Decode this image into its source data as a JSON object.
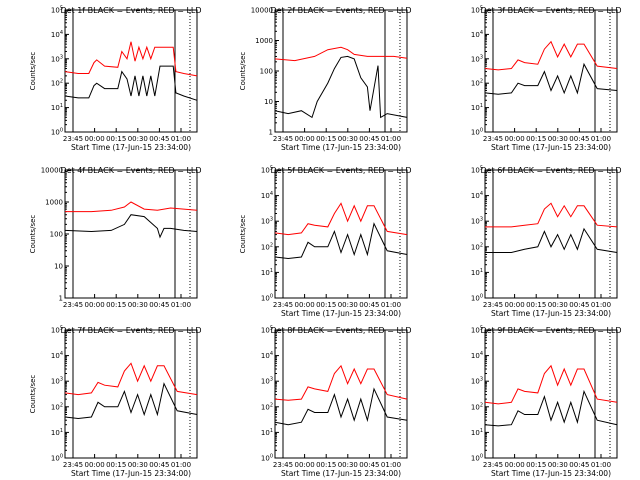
{
  "figure": {
    "colors": {
      "events": "#000000",
      "lld": "#ff0000",
      "axes": "#000000",
      "background": "#ffffff"
    },
    "marker_labels": {
      "left": "",
      "right": ""
    }
  },
  "chart_data": [
    {
      "type": "line",
      "title": "Det 1f BLACK = Events, RED = LLD",
      "xlabel": "Start Time (17-Jun-15 23:34:00)",
      "ylabel": "Counts/sec",
      "yscale": "log",
      "ylim": [
        1,
        100000
      ],
      "xtick_labels": [
        "23:45",
        "00:00",
        "00:15",
        "00:30",
        "00:45",
        "01:00"
      ],
      "ytick_labels": [
        "10^0",
        "10^1",
        "10^2",
        "10^3",
        "10^4",
        "10^5"
      ],
      "series": [
        {
          "key": "lld",
          "color": "#ff0000",
          "x": [
            0,
            0.1,
            0.18,
            0.22,
            0.24,
            0.3,
            0.4,
            0.43,
            0.47,
            0.5,
            0.53,
            0.56,
            0.59,
            0.62,
            0.65,
            0.68,
            0.72,
            0.82,
            0.84,
            0.9,
            1
          ],
          "y": [
            300,
            250,
            250,
            700,
            900,
            500,
            450,
            2000,
            1000,
            5000,
            800,
            3000,
            1000,
            3000,
            1000,
            3000,
            3000,
            3000,
            300,
            250,
            200
          ]
        },
        {
          "key": "events",
          "color": "#000000",
          "x": [
            0,
            0.1,
            0.18,
            0.22,
            0.24,
            0.3,
            0.4,
            0.43,
            0.47,
            0.5,
            0.53,
            0.56,
            0.59,
            0.62,
            0.65,
            0.68,
            0.72,
            0.82,
            0.84,
            0.9,
            1
          ],
          "y": [
            30,
            25,
            25,
            80,
            100,
            60,
            60,
            300,
            150,
            30,
            200,
            30,
            200,
            30,
            200,
            30,
            500,
            500,
            40,
            30,
            20
          ]
        }
      ]
    },
    {
      "type": "line",
      "title": "Det 2f BLACK = Events, RED = LLD",
      "xlabel": "Start Time (17-Jun-15 23:34:00)",
      "ylabel": "Counts/sec",
      "yscale": "log",
      "ylim": [
        1,
        10000
      ],
      "xtick_labels": [
        "23:45",
        "00:00",
        "00:15",
        "00:30",
        "00:45",
        "01:00"
      ],
      "ytick_labels": [
        "1",
        "10",
        "100",
        "1000",
        "10000"
      ],
      "series": [
        {
          "key": "lld",
          "color": "#ff0000",
          "x": [
            0,
            0.15,
            0.3,
            0.4,
            0.5,
            0.55,
            0.6,
            0.7,
            0.8,
            0.9,
            1
          ],
          "y": [
            250,
            220,
            300,
            500,
            600,
            500,
            350,
            300,
            300,
            300,
            260
          ]
        },
        {
          "key": "events",
          "color": "#000000",
          "x": [
            0,
            0.1,
            0.2,
            0.28,
            0.32,
            0.4,
            0.45,
            0.5,
            0.55,
            0.6,
            0.65,
            0.7,
            0.72,
            0.78,
            0.8,
            0.85,
            1
          ],
          "y": [
            5,
            4,
            5,
            3,
            10,
            40,
            120,
            280,
            300,
            250,
            60,
            30,
            5,
            150,
            3,
            4,
            3
          ]
        }
      ]
    },
    {
      "type": "line",
      "title": "Det 3f BLACK = Events, RED = LLD",
      "xlabel": "Start Time (17-Jun-15 23:34:00)",
      "ylabel": "",
      "yscale": "log",
      "ylim": [
        1,
        100000
      ],
      "xtick_labels": [
        "23:45",
        "00:00",
        "00:15",
        "00:30",
        "00:45",
        "01:00"
      ],
      "ytick_labels": [
        "10^0",
        "10^1",
        "10^2",
        "10^3",
        "10^4",
        "10^5"
      ],
      "series": [
        {
          "key": "lld",
          "color": "#ff0000",
          "x": [
            0,
            0.1,
            0.2,
            0.25,
            0.3,
            0.4,
            0.45,
            0.5,
            0.55,
            0.6,
            0.65,
            0.7,
            0.75,
            0.85,
            1
          ],
          "y": [
            400,
            350,
            400,
            900,
            700,
            600,
            2500,
            5000,
            1200,
            4000,
            1200,
            4000,
            4000,
            500,
            400
          ]
        },
        {
          "key": "events",
          "color": "#000000",
          "x": [
            0,
            0.1,
            0.2,
            0.25,
            0.3,
            0.4,
            0.45,
            0.5,
            0.55,
            0.6,
            0.65,
            0.7,
            0.75,
            0.85,
            1
          ],
          "y": [
            40,
            35,
            40,
            100,
            80,
            80,
            300,
            50,
            200,
            40,
            200,
            40,
            600,
            60,
            50
          ]
        }
      ]
    },
    {
      "type": "line",
      "title": "Det 4f BLACK = Events, RED = LLD",
      "xlabel": "",
      "ylabel": "Counts/sec",
      "yscale": "log",
      "ylim": [
        1,
        10000
      ],
      "xtick_labels": [
        "23:45",
        "00:00",
        "00:15",
        "00:30",
        "00:45",
        "01:00"
      ],
      "ytick_labels": [
        "1",
        "10",
        "100",
        "1000",
        "10000"
      ],
      "series": [
        {
          "key": "lld",
          "color": "#ff0000",
          "x": [
            0,
            0.2,
            0.35,
            0.45,
            0.5,
            0.6,
            0.7,
            0.8,
            0.9,
            1
          ],
          "y": [
            500,
            500,
            550,
            700,
            1000,
            600,
            550,
            650,
            600,
            550
          ]
        },
        {
          "key": "events",
          "color": "#000000",
          "x": [
            0,
            0.2,
            0.35,
            0.45,
            0.5,
            0.6,
            0.7,
            0.72,
            0.75,
            0.8,
            0.9,
            1
          ],
          "y": [
            130,
            120,
            130,
            200,
            400,
            350,
            150,
            80,
            150,
            150,
            130,
            120
          ]
        }
      ]
    },
    {
      "type": "line",
      "title": "Det 5f BLACK = Events, RED = LLD",
      "xlabel": "Start Time (17-Jun-15 23:34:00)",
      "ylabel": "Counts/sec",
      "yscale": "log",
      "ylim": [
        1,
        100000
      ],
      "xtick_labels": [
        "23:45",
        "00:00",
        "00:15",
        "00:30",
        "00:45",
        "01:00"
      ],
      "ytick_labels": [
        "10^0",
        "10^1",
        "10^2",
        "10^3",
        "10^4",
        "10^5"
      ],
      "series": [
        {
          "key": "lld",
          "color": "#ff0000",
          "x": [
            0,
            0.1,
            0.2,
            0.25,
            0.3,
            0.4,
            0.45,
            0.5,
            0.55,
            0.6,
            0.65,
            0.7,
            0.75,
            0.85,
            1
          ],
          "y": [
            350,
            300,
            350,
            800,
            700,
            600,
            2000,
            5000,
            1000,
            4000,
            1000,
            4000,
            4000,
            400,
            300
          ]
        },
        {
          "key": "events",
          "color": "#000000",
          "x": [
            0,
            0.1,
            0.2,
            0.25,
            0.3,
            0.4,
            0.45,
            0.5,
            0.55,
            0.6,
            0.65,
            0.7,
            0.75,
            0.85,
            1
          ],
          "y": [
            40,
            35,
            40,
            150,
            100,
            100,
            400,
            60,
            300,
            50,
            300,
            50,
            800,
            70,
            50
          ]
        }
      ]
    },
    {
      "type": "line",
      "title": "Det 6f BLACK = Events, RED = LLD",
      "xlabel": "Start Time (17-Jun-15 23:34:00)",
      "ylabel": "",
      "yscale": "log",
      "ylim": [
        1,
        100000
      ],
      "xtick_labels": [
        "23:45",
        "00:00",
        "00:15",
        "00:30",
        "00:45",
        "01:00"
      ],
      "ytick_labels": [
        "10^0",
        "10^1",
        "10^2",
        "10^3",
        "10^4",
        "10^5"
      ],
      "series": [
        {
          "key": "lld",
          "color": "#ff0000",
          "x": [
            0,
            0.2,
            0.3,
            0.4,
            0.45,
            0.5,
            0.55,
            0.6,
            0.65,
            0.7,
            0.75,
            0.85,
            1
          ],
          "y": [
            600,
            600,
            700,
            800,
            3000,
            5000,
            1500,
            4000,
            1500,
            4000,
            4000,
            700,
            600
          ]
        },
        {
          "key": "events",
          "color": "#000000",
          "x": [
            0,
            0.2,
            0.3,
            0.4,
            0.45,
            0.5,
            0.55,
            0.6,
            0.65,
            0.7,
            0.75,
            0.85,
            1
          ],
          "y": [
            60,
            60,
            80,
            100,
            400,
            100,
            300,
            80,
            300,
            80,
            500,
            80,
            60
          ]
        }
      ]
    },
    {
      "type": "line",
      "title": "Det 7f BLACK = Events, RED = LLD",
      "xlabel": "Start Time (17-Jun-15 23:34:00)",
      "ylabel": "Counts/sec",
      "yscale": "log",
      "ylim": [
        1,
        100000
      ],
      "xtick_labels": [
        "23:45",
        "00:00",
        "00:15",
        "00:30",
        "00:45",
        "01:00"
      ],
      "ytick_labels": [
        "10^0",
        "10^1",
        "10^2",
        "10^3",
        "10^4",
        "10^5"
      ],
      "series": [
        {
          "key": "lld",
          "color": "#ff0000",
          "x": [
            0,
            0.1,
            0.2,
            0.25,
            0.3,
            0.4,
            0.45,
            0.5,
            0.55,
            0.6,
            0.65,
            0.7,
            0.75,
            0.85,
            1
          ],
          "y": [
            350,
            300,
            350,
            900,
            700,
            600,
            2500,
            5000,
            1000,
            4000,
            1000,
            4000,
            4000,
            400,
            300
          ]
        },
        {
          "key": "events",
          "color": "#000000",
          "x": [
            0,
            0.1,
            0.2,
            0.25,
            0.3,
            0.4,
            0.45,
            0.5,
            0.55,
            0.6,
            0.65,
            0.7,
            0.75,
            0.85,
            1
          ],
          "y": [
            40,
            35,
            40,
            150,
            100,
            100,
            400,
            60,
            300,
            50,
            300,
            50,
            800,
            70,
            50
          ]
        }
      ]
    },
    {
      "type": "line",
      "title": "Det 8f BLACK = Events, RED = LLD",
      "xlabel": "Start Time (17-Jun-15 23:34:00)",
      "ylabel": "",
      "yscale": "log",
      "ylim": [
        1,
        100000
      ],
      "xtick_labels": [
        "23:45",
        "00:00",
        "00:15",
        "00:30",
        "00:45",
        "01:00"
      ],
      "ytick_labels": [
        "10^0",
        "10^1",
        "10^2",
        "10^3",
        "10^4",
        "10^5"
      ],
      "series": [
        {
          "key": "lld",
          "color": "#ff0000",
          "x": [
            0,
            0.1,
            0.2,
            0.25,
            0.3,
            0.4,
            0.45,
            0.5,
            0.55,
            0.6,
            0.65,
            0.7,
            0.75,
            0.85,
            1
          ],
          "y": [
            200,
            180,
            200,
            600,
            500,
            400,
            2000,
            4000,
            800,
            3000,
            800,
            3000,
            3000,
            300,
            200
          ]
        },
        {
          "key": "events",
          "color": "#000000",
          "x": [
            0,
            0.1,
            0.2,
            0.25,
            0.3,
            0.4,
            0.45,
            0.5,
            0.55,
            0.6,
            0.65,
            0.7,
            0.75,
            0.85,
            1
          ],
          "y": [
            25,
            20,
            25,
            80,
            60,
            60,
            300,
            40,
            200,
            30,
            200,
            30,
            500,
            40,
            30
          ]
        }
      ]
    },
    {
      "type": "line",
      "title": "Det 9f BLACK = Events, RED = LLD",
      "xlabel": "Start Time (17-Jun-15 23:34:00)",
      "ylabel": "",
      "yscale": "log",
      "ylim": [
        1,
        100000
      ],
      "xtick_labels": [
        "23:45",
        "00:00",
        "00:15",
        "00:30",
        "00:45",
        "01:00"
      ],
      "ytick_labels": [
        "10^0",
        "10^1",
        "10^2",
        "10^3",
        "10^4",
        "10^5"
      ],
      "series": [
        {
          "key": "lld",
          "color": "#ff0000",
          "x": [
            0,
            0.1,
            0.2,
            0.25,
            0.3,
            0.4,
            0.45,
            0.5,
            0.55,
            0.6,
            0.65,
            0.7,
            0.75,
            0.85,
            1
          ],
          "y": [
            150,
            130,
            150,
            500,
            400,
            350,
            2000,
            4000,
            700,
            3000,
            700,
            3000,
            3000,
            200,
            150
          ]
        },
        {
          "key": "events",
          "color": "#000000",
          "x": [
            0,
            0.1,
            0.2,
            0.25,
            0.3,
            0.4,
            0.45,
            0.5,
            0.55,
            0.6,
            0.65,
            0.7,
            0.75,
            0.85,
            1
          ],
          "y": [
            20,
            18,
            20,
            70,
            50,
            50,
            250,
            30,
            150,
            25,
            150,
            25,
            400,
            30,
            20
          ]
        }
      ]
    }
  ]
}
